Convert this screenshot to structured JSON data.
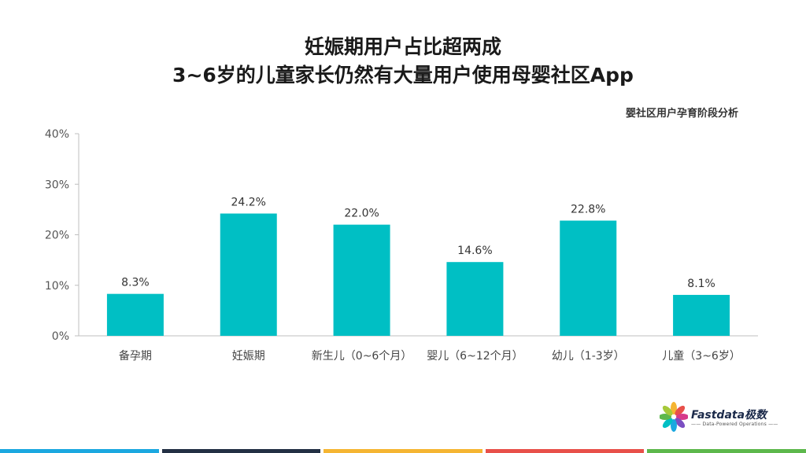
{
  "title_lines": [
    "妊娠期用户占比超两成",
    "3~6岁的儿童家长仍然有大量用户使用母婴社区App"
  ],
  "chart_data": {
    "type": "bar",
    "title": "妊娠期用户占比超两成 3~6岁的儿童家长仍然有大量用户使用母婴社区App",
    "subtitle": "婴社区用户孕育阶段分析",
    "categories": [
      "备孕期",
      "妊娠期",
      "新生儿（0~6个月）",
      "婴儿（6~12个月）",
      "幼儿（1-3岁）",
      "儿童（3~6岁）"
    ],
    "values": [
      8.3,
      24.2,
      22.0,
      14.6,
      22.8,
      8.1
    ],
    "value_labels": [
      "8.3%",
      "24.2%",
      "22.0%",
      "14.6%",
      "22.8%",
      "8.1%"
    ],
    "unit": "%",
    "ylim": [
      0,
      40
    ],
    "yticks": [
      0,
      10,
      20,
      30,
      40
    ],
    "ytick_labels": [
      "0%",
      "10%",
      "20%",
      "30%",
      "40%"
    ],
    "xlabel": "",
    "ylabel": "",
    "grid": false,
    "bar_color": "#00bfc4"
  },
  "logo": {
    "name": "Fastdata极数",
    "tagline": "—— Data-Powered Operations ——"
  },
  "bottom_bar_colors": [
    "#1ba8e0",
    "#233044",
    "#f5b532",
    "#e8504a",
    "#5db84c"
  ]
}
